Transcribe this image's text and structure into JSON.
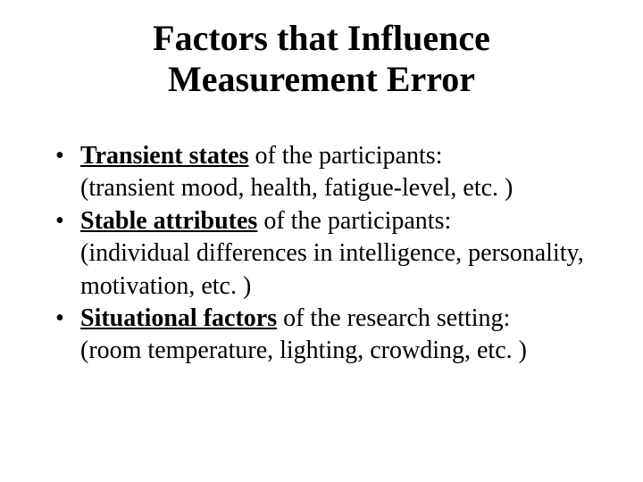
{
  "title_line1": "Factors that Influence",
  "title_line2": "Measurement Error",
  "items": [
    {
      "term": "Transient states",
      "tail": " of the participants:",
      "detail": "(transient mood, health, fatigue-level, etc. )"
    },
    {
      "term": "Stable attributes",
      "tail": " of the participants:",
      "detail": "(individual differences in intelligence, personality, motivation, etc. )"
    },
    {
      "term": "Situational factors",
      "tail": " of the research setting:",
      "detail": "(room temperature, lighting, crowding, etc. )"
    }
  ],
  "colors": {
    "background": "#ffffff",
    "text": "#000000"
  },
  "typography": {
    "family": "Times New Roman",
    "title_size_pt": 40,
    "body_size_pt": 28
  }
}
